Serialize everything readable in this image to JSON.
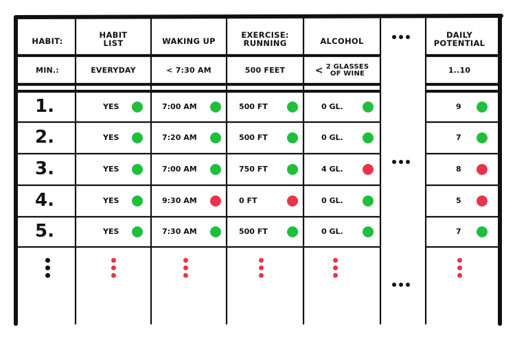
{
  "colors": {
    "ink": "#111111",
    "good": "#1fbf3c",
    "bad": "#e8344a"
  },
  "header": {
    "habit_label": "HABIT:",
    "columns": [
      "HABIT LIST",
      "WAKING UP",
      "EXERCISE: RUNNING",
      "ALCOHOL",
      "DAILY POTENTIAL"
    ],
    "columns_lines": [
      [
        "HABIT",
        "LIST"
      ],
      [
        "WAKING UP"
      ],
      [
        "EXERCISE:",
        "RUNNING"
      ],
      [
        "ALCOHOL"
      ],
      [
        "DAILY",
        "POTENTIAL"
      ]
    ]
  },
  "minimum": {
    "label": "MIN.:",
    "values": [
      "EVERYDAY",
      "< 7:30 AM",
      "500 FEET",
      "1..10"
    ],
    "alcohol_prefix": "<",
    "alcohol_lines": [
      "2 GLASSES",
      "OF WINE"
    ]
  },
  "rows": [
    {
      "num": "1.",
      "habit": "YES",
      "wake": "7:00 AM",
      "run": "500 FT",
      "alcohol": "0 GL.",
      "potential": "9",
      "status": [
        "good",
        "good",
        "good",
        "good",
        "good"
      ]
    },
    {
      "num": "2.",
      "habit": "YES",
      "wake": "7:20 AM",
      "run": "500 FT",
      "alcohol": "0 GL.",
      "potential": "7",
      "status": [
        "good",
        "good",
        "good",
        "good",
        "good"
      ]
    },
    {
      "num": "3.",
      "habit": "YES",
      "wake": "7:00 AM",
      "run": "750 FT",
      "alcohol": "4 GL.",
      "potential": "8",
      "status": [
        "good",
        "good",
        "good",
        "bad",
        "bad"
      ]
    },
    {
      "num": "4.",
      "habit": "YES",
      "wake": "9:30 AM",
      "run": "0 FT",
      "alcohol": "0 GL.",
      "potential": "5",
      "status": [
        "good",
        "bad",
        "bad",
        "good",
        "bad"
      ]
    },
    {
      "num": "5.",
      "habit": "YES",
      "wake": "7:30 AM",
      "run": "500 FT",
      "alcohol": "0 GL.",
      "potential": "7",
      "status": [
        "good",
        "good",
        "good",
        "good",
        "good"
      ]
    }
  ],
  "continuation": {
    "more_columns": "...",
    "more_rows": "..."
  }
}
